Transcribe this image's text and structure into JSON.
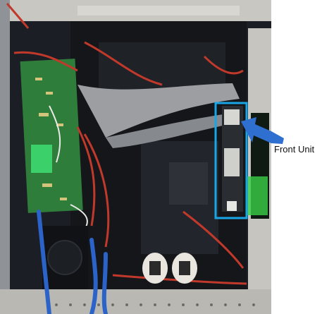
{
  "figure": {
    "annotation_label": "Front Unit",
    "highlight_color": "#19a6e6",
    "arrow_color": "#2f6fd0"
  }
}
